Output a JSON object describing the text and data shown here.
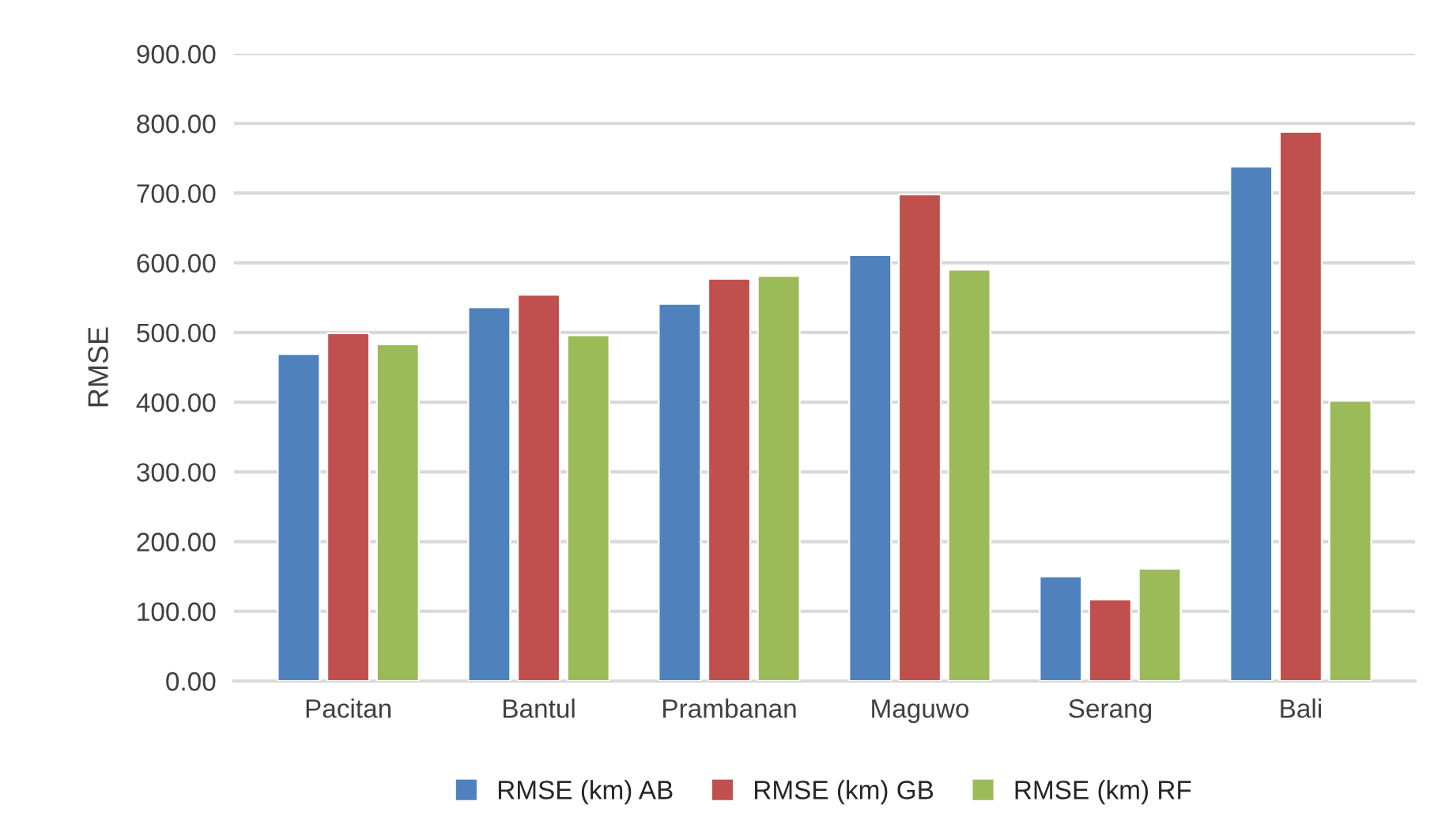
{
  "chart_data": {
    "type": "bar",
    "ylabel": "RMSE",
    "categories": [
      "Pacitan",
      "Bantul",
      "Prambanan",
      "Maguwo",
      "Serang",
      "Bali"
    ],
    "series": [
      {
        "name": "RMSE (km) AB",
        "color": "#4f81bd",
        "values": [
          469,
          536,
          541,
          611,
          150,
          738
        ]
      },
      {
        "name": "RMSE (km) GB",
        "color": "#c0504d",
        "values": [
          499,
          554,
          577,
          698,
          117,
          788
        ]
      },
      {
        "name": "RMSE (km) RF",
        "color": "#9bbb59",
        "values": [
          483,
          496,
          581,
          590,
          161,
          402
        ]
      }
    ],
    "ylim": [
      0,
      900
    ],
    "yticks": [
      {
        "value": 0,
        "label": "0.00"
      },
      {
        "value": 100,
        "label": "100.00"
      },
      {
        "value": 200,
        "label": "200.00"
      },
      {
        "value": 300,
        "label": "300.00"
      },
      {
        "value": 400,
        "label": "400.00"
      },
      {
        "value": 500,
        "label": "500.00"
      },
      {
        "value": 600,
        "label": "600.00"
      },
      {
        "value": 700,
        "label": "700.00"
      },
      {
        "value": 800,
        "label": "800.00"
      },
      {
        "value": 900,
        "label": "900.00"
      }
    ],
    "grid": "y",
    "legend": "bottom"
  }
}
